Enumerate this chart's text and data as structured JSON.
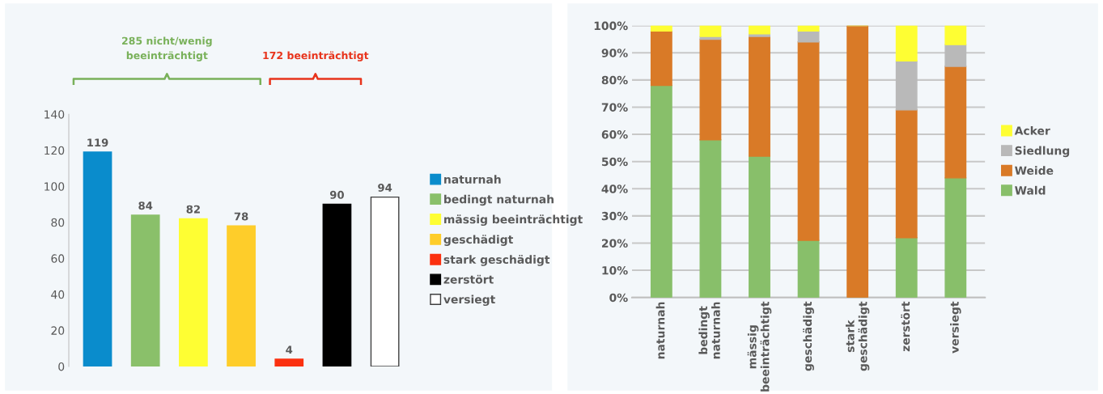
{
  "chart_data": [
    {
      "type": "bar",
      "stacked": true,
      "categories": [
        null,
        null,
        null,
        null,
        null,
        null,
        null
      ],
      "series": [
        {
          "name": "naturnah",
          "color": "#0a8ccc",
          "values": [
            119,
            0,
            0,
            0,
            0,
            0,
            0
          ],
          "value_labels": [
            "119",
            null,
            null,
            null,
            null,
            null,
            null
          ]
        },
        {
          "name": "bedingt naturnah",
          "color": "#8ac06a",
          "values": [
            0,
            84,
            0,
            0,
            0,
            0,
            0
          ],
          "value_labels": [
            null,
            "84",
            null,
            null,
            null,
            null,
            null
          ]
        },
        {
          "name": "mässig beeinträchtigt",
          "color": "#fefe33",
          "values": [
            0,
            0,
            82,
            0,
            0,
            0,
            0
          ],
          "value_labels": [
            null,
            null,
            "82",
            null,
            null,
            null,
            null
          ]
        },
        {
          "name": "geschädigt",
          "color": "#fecd2a",
          "values": [
            0,
            0,
            0,
            78,
            0,
            0,
            0
          ],
          "value_labels": [
            null,
            null,
            null,
            "78",
            null,
            null,
            null
          ]
        },
        {
          "name": "stark geschädigt",
          "color": "#fb3110",
          "values": [
            0,
            0,
            0,
            0,
            4,
            0,
            0
          ],
          "value_labels": [
            null,
            null,
            null,
            null,
            "4",
            null,
            null
          ]
        },
        {
          "name": "zerstört",
          "color": "#000000",
          "values": [
            0,
            0,
            0,
            0,
            0,
            90,
            0
          ],
          "value_labels": [
            null,
            null,
            null,
            null,
            null,
            "90",
            null
          ]
        },
        {
          "name": "versiegt",
          "color": "#ffffff",
          "values": [
            0,
            0,
            0,
            0,
            0,
            0,
            94
          ],
          "value_labels": [
            null,
            null,
            null,
            null,
            null,
            null,
            "94"
          ]
        }
      ],
      "ylim": [
        0,
        140
      ],
      "yticks": [
        0,
        20,
        40,
        60,
        80,
        100,
        120,
        140
      ],
      "legend": "right",
      "annotations": [
        "285 nicht/wenig beeinträchtigt",
        "172 beeinträchtigt"
      ]
    },
    {
      "type": "bar",
      "stacked": true,
      "categories": [
        "naturnah",
        "bedingt\nnaturnah",
        "mässig\nbeeinträchtigt",
        "geschädigt",
        "stark\ngeschädigt",
        "zerstört",
        "versiegt"
      ],
      "series": [
        {
          "name": "Wald",
          "color": "#88bf6a",
          "values": [
            78,
            58,
            52,
            21,
            0,
            22,
            44
          ]
        },
        {
          "name": "Weide",
          "color": "#d97a27",
          "values": [
            20,
            37,
            44,
            73,
            100,
            47,
            41
          ]
        },
        {
          "name": "Siedlung",
          "color": "#b9b9b9",
          "values": [
            0,
            1,
            1,
            4,
            0,
            18,
            8
          ]
        },
        {
          "name": "Acker",
          "color": "#fefe33",
          "values": [
            2,
            4,
            3,
            2,
            0,
            13,
            7
          ]
        }
      ],
      "ylim": [
        0,
        100
      ],
      "yticks": [
        {
          "value": 0,
          "label": "0%"
        },
        {
          "value": 10,
          "label": "10%"
        },
        {
          "value": 20,
          "label": "20%"
        },
        {
          "value": 30,
          "label": "30%"
        },
        {
          "value": 40,
          "label": "40%"
        },
        {
          "value": 50,
          "label": "50%"
        },
        {
          "value": 60,
          "label": "60%"
        },
        {
          "value": 70,
          "label": "70%"
        },
        {
          "value": 80,
          "label": "80%"
        },
        {
          "value": 90,
          "label": "90%"
        },
        {
          "value": 100,
          "label": "100%"
        }
      ],
      "grid": "y",
      "legend": "right"
    }
  ]
}
